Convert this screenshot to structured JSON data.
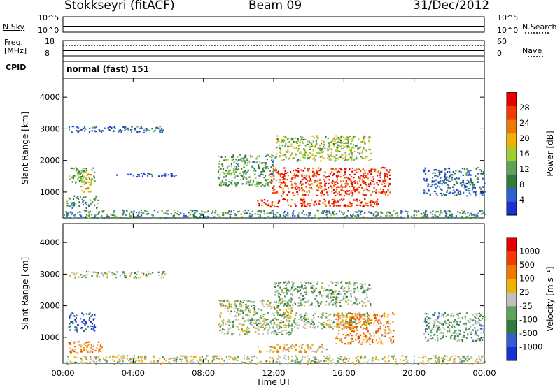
{
  "header": {
    "title": "Stokkseyri (fitACF)",
    "beam": "Beam 09",
    "date": "31/Dec/2012"
  },
  "top_panels": {
    "nsky_label": "N.Sky",
    "nsky_ticks": [
      "10^5",
      "10^0"
    ],
    "nsearch_label": "N.Search",
    "nsearch_ticks": [
      "10^5",
      "10^0"
    ],
    "freq_label": "Freq.",
    "freq_unit": "[MHz]",
    "freq_ticks": [
      "18",
      "8"
    ],
    "nave_label": "Nave",
    "nave_ticks": [
      "60",
      "0"
    ],
    "cpid_label": "CPID",
    "cpid_value": "normal (fast) 151"
  },
  "colors": {
    "power_scale": [
      "#1a2fd4",
      "#2f5fd0",
      "#2f7a3e",
      "#5fa35a",
      "#9fce2e",
      "#f0b000",
      "#f07800",
      "#f03c00",
      "#e80000"
    ],
    "velocity_scale": [
      "#1a2fd4",
      "#2f5fd0",
      "#2f7a3e",
      "#5fa35a",
      "#bfbfbf",
      "#f0b000",
      "#f07800",
      "#f03c00",
      "#e80000"
    ],
    "ground_scatter": "#c0c0c0"
  },
  "chart_data": [
    {
      "type": "heatmap",
      "name": "power",
      "ylabel": "Slant Range [km]",
      "xlabel": "Time UT",
      "y_ticks": [
        "1000",
        "2000",
        "3000",
        "4000"
      ],
      "x_ticks": [
        "00:00",
        "04:00",
        "08:00",
        "12:00",
        "16:00",
        "20:00",
        "00:00"
      ],
      "xlim_hours": [
        0,
        24
      ],
      "ylim_km": [
        180,
        4600
      ],
      "colorbar_label": "Power [dB]",
      "colorbar_ticks": [
        "28",
        "24",
        "20",
        "16",
        "12",
        "8",
        "4"
      ],
      "regions": [
        {
          "t0": 0.3,
          "t1": 5.9,
          "r0": 2900,
          "r1": 3100,
          "level": 0.2
        },
        {
          "t0": 0.3,
          "t1": 1.8,
          "r0": 1300,
          "r1": 1800,
          "level": 0.4
        },
        {
          "t0": 1.0,
          "t1": 1.6,
          "r0": 1000,
          "r1": 1700,
          "level": 0.6
        },
        {
          "t0": 0.2,
          "t1": 2.0,
          "r0": 500,
          "r1": 900,
          "level": 0.3
        },
        {
          "t0": 3.0,
          "t1": 6.5,
          "r0": 1500,
          "r1": 1620,
          "level": 0.1
        },
        {
          "t0": 8.8,
          "t1": 12.0,
          "r0": 1200,
          "r1": 2200,
          "level": 0.35
        },
        {
          "t0": 11.8,
          "t1": 18.6,
          "r0": 900,
          "r1": 1800,
          "level": 0.85
        },
        {
          "t0": 12.0,
          "t1": 17.5,
          "r0": 2000,
          "r1": 2800,
          "level": 0.45
        },
        {
          "t0": 11.0,
          "t1": 18.0,
          "r0": 550,
          "r1": 800,
          "level": 0.9
        },
        {
          "t0": 20.5,
          "t1": 24.0,
          "r0": 900,
          "r1": 1800,
          "level": 0.2
        },
        {
          "t0": 0.0,
          "t1": 24.0,
          "r0": 180,
          "r1": 450,
          "level": 0.3
        }
      ]
    },
    {
      "type": "heatmap",
      "name": "velocity",
      "ylabel": "Slant Range [km]",
      "xlabel": "Time UT",
      "y_ticks": [
        "1000",
        "2000",
        "3000",
        "4000"
      ],
      "x_ticks": [
        "00:00",
        "04:00",
        "08:00",
        "12:00",
        "16:00",
        "20:00",
        "00:00"
      ],
      "xlim_hours": [
        0,
        24
      ],
      "ylim_km": [
        180,
        4600
      ],
      "colorbar_label": "Velocity [m s⁻¹]",
      "colorbar_ticks": [
        "1000",
        "500",
        "100",
        "25",
        "-25",
        "-100",
        "-500",
        "-1000"
      ],
      "regions": [
        {
          "t0": 0.3,
          "t1": 5.9,
          "r0": 2900,
          "r1": 3100,
          "level": 0.45
        },
        {
          "t0": 0.3,
          "t1": 1.8,
          "r0": 1200,
          "r1": 1800,
          "level": 0.15
        },
        {
          "t0": 0.2,
          "t1": 2.2,
          "r0": 500,
          "r1": 900,
          "level": 0.65
        },
        {
          "t0": 8.8,
          "t1": 13.0,
          "r0": 1100,
          "r1": 2200,
          "level": 0.45
        },
        {
          "t0": 12.0,
          "t1": 17.5,
          "r0": 1300,
          "r1": 1800,
          "level": 0.45
        },
        {
          "t0": 12.0,
          "t1": 17.5,
          "r0": 2000,
          "r1": 2800,
          "level": 0.4
        },
        {
          "t0": 15.5,
          "t1": 18.8,
          "r0": 800,
          "r1": 1800,
          "level": 0.7
        },
        {
          "t0": 11.0,
          "t1": 15.0,
          "r0": 550,
          "r1": 800,
          "level": 0.6
        },
        {
          "t0": 20.5,
          "t1": 24.0,
          "r0": 900,
          "r1": 1800,
          "level": 0.35
        },
        {
          "t0": 0.0,
          "t1": 24.0,
          "r0": 180,
          "r1": 450,
          "level": 0.5
        }
      ]
    }
  ]
}
